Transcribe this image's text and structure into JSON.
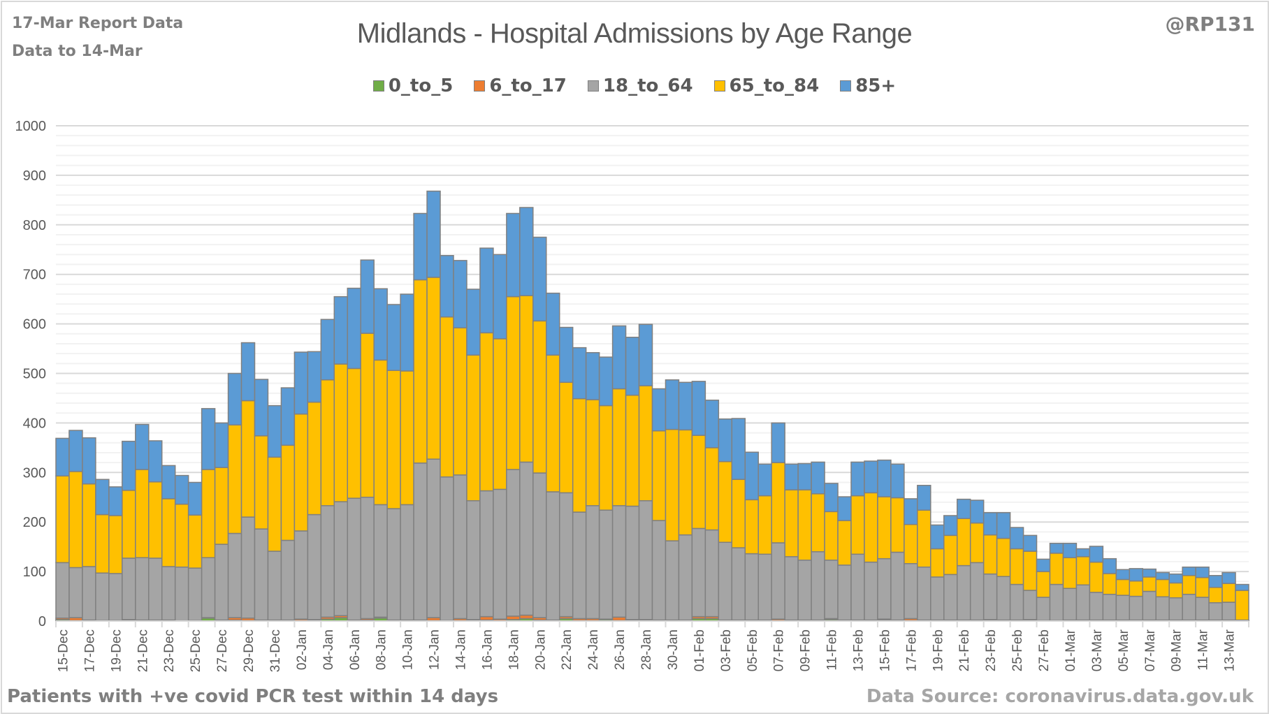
{
  "header": {
    "report_line1": "17-Mar Report Data",
    "report_line2": "Data to 14-Mar",
    "handle": "@RP131"
  },
  "footer": {
    "note": "Patients with  +ve covid PCR test within 14 days",
    "source": "Data Source: coronavirus.data.gov.uk"
  },
  "chart_data": {
    "type": "bar",
    "stacked": true,
    "title": "Midlands - Hospital Admissions by Age Range",
    "xlabel": "",
    "ylabel": "",
    "ylim": [
      0,
      1000
    ],
    "yticks": [
      0,
      100,
      200,
      300,
      400,
      500,
      600,
      700,
      800,
      900,
      1000
    ],
    "grid": true,
    "minor_grid_step": 20,
    "legend_position": "top",
    "categories": [
      "15-Dec",
      "16-Dec",
      "17-Dec",
      "18-Dec",
      "19-Dec",
      "20-Dec",
      "21-Dec",
      "22-Dec",
      "23-Dec",
      "24-Dec",
      "25-Dec",
      "26-Dec",
      "27-Dec",
      "28-Dec",
      "29-Dec",
      "30-Dec",
      "31-Dec",
      "01-Jan",
      "02-Jan",
      "03-Jan",
      "04-Jan",
      "05-Jan",
      "06-Jan",
      "07-Jan",
      "08-Jan",
      "09-Jan",
      "10-Jan",
      "11-Jan",
      "12-Jan",
      "13-Jan",
      "14-Jan",
      "15-Jan",
      "16-Jan",
      "17-Jan",
      "18-Jan",
      "19-Jan",
      "20-Jan",
      "21-Jan",
      "22-Jan",
      "23-Jan",
      "24-Jan",
      "25-Jan",
      "26-Jan",
      "27-Jan",
      "28-Jan",
      "29-Jan",
      "30-Jan",
      "31-Jan",
      "01-Feb",
      "02-Feb",
      "03-Feb",
      "04-Feb",
      "05-Feb",
      "06-Feb",
      "07-Feb",
      "08-Feb",
      "09-Feb",
      "10-Feb",
      "11-Feb",
      "12-Feb",
      "13-Feb",
      "14-Feb",
      "15-Feb",
      "16-Feb",
      "17-Feb",
      "18-Feb",
      "19-Feb",
      "20-Feb",
      "21-Feb",
      "22-Feb",
      "23-Feb",
      "24-Feb",
      "25-Feb",
      "26-Feb",
      "27-Feb",
      "28-Feb",
      "01-Mar",
      "02-Mar",
      "03-Mar",
      "04-Mar",
      "05-Mar",
      "06-Mar",
      "07-Mar",
      "08-Mar",
      "09-Mar",
      "10-Mar",
      "11-Mar",
      "12-Mar",
      "13-Mar",
      "14-Mar"
    ],
    "tick_labels_every": 2,
    "series": [
      {
        "name": "0_to_5",
        "color": "#70ad47",
        "values": [
          3,
          1,
          1,
          0,
          0,
          2,
          1,
          1,
          1,
          0,
          0,
          6,
          1,
          2,
          1,
          1,
          1,
          1,
          1,
          1,
          4,
          7,
          1,
          2,
          6,
          1,
          1,
          1,
          1,
          0,
          1,
          1,
          2,
          1,
          3,
          5,
          2,
          1,
          5,
          1,
          1,
          3,
          1,
          1,
          1,
          1,
          1,
          1,
          5,
          5,
          1,
          1,
          1,
          1,
          1,
          1,
          1,
          1,
          3,
          1,
          1,
          1,
          2,
          1,
          1,
          1,
          1,
          1,
          1,
          1,
          1,
          1,
          1,
          2,
          1,
          0,
          1,
          1,
          1,
          1,
          1,
          1,
          1,
          1,
          1,
          1,
          1,
          1,
          1,
          1
        ]
      },
      {
        "name": "6_to_17",
        "color": "#ed7d31",
        "values": [
          3,
          6,
          1,
          1,
          1,
          1,
          1,
          1,
          1,
          0,
          1,
          1,
          1,
          5,
          5,
          1,
          1,
          1,
          3,
          2,
          4,
          4,
          1,
          3,
          2,
          1,
          1,
          1,
          6,
          1,
          4,
          2,
          7,
          3,
          7,
          7,
          5,
          1,
          4,
          4,
          4,
          1,
          7,
          2,
          2,
          1,
          1,
          1,
          4,
          4,
          1,
          1,
          1,
          1,
          3,
          1,
          1,
          1,
          2,
          1,
          1,
          1,
          2,
          1,
          4,
          1,
          1,
          1,
          1,
          1,
          2,
          1,
          1,
          1,
          0,
          1,
          1,
          1,
          1,
          1,
          1,
          1,
          1,
          1,
          1,
          1,
          1,
          1,
          1,
          1
        ]
      },
      {
        "name": "18_to_64",
        "color": "#a5a5a5",
        "values": [
          112,
          101,
          108,
          96,
          95,
          124,
          126,
          125,
          108,
          109,
          106,
          121,
          153,
          170,
          204,
          184,
          139,
          161,
          178,
          212,
          225,
          230,
          246,
          245,
          227,
          225,
          233,
          317,
          320,
          290,
          290,
          240,
          254,
          262,
          296,
          309,
          292,
          259,
          250,
          215,
          228,
          220,
          225,
          229,
          240,
          201,
          160,
          172,
          178,
          175,
          157,
          146,
          134,
          133,
          154,
          128,
          121,
          138,
          118,
          111,
          133,
          117,
          122,
          137,
          111,
          107,
          87,
          92,
          110,
          116,
          92,
          88,
          72,
          59,
          47,
          73,
          64,
          71,
          56,
          52,
          50,
          48,
          58,
          47,
          45,
          52,
          46,
          35,
          36,
          0
        ]
      },
      {
        "name": "65_to_84",
        "color": "#ffc000",
        "values": [
          175,
          194,
          167,
          118,
          117,
          137,
          178,
          154,
          137,
          127,
          107,
          178,
          155,
          219,
          235,
          188,
          190,
          192,
          236,
          227,
          254,
          278,
          262,
          331,
          292,
          279,
          270,
          370,
          367,
          323,
          297,
          294,
          319,
          304,
          349,
          336,
          307,
          276,
          223,
          229,
          214,
          211,
          236,
          224,
          232,
          181,
          225,
          212,
          188,
          166,
          163,
          138,
          109,
          118,
          162,
          135,
          142,
          117,
          98,
          90,
          118,
          140,
          125,
          110,
          79,
          115,
          57,
          79,
          95,
          80,
          79,
          77,
          72,
          79,
          52,
          63,
          62,
          57,
          61,
          42,
          32,
          31,
          29,
          35,
          30,
          38,
          40,
          31,
          38,
          60
        ]
      },
      {
        "name": "85+",
        "color": "#5b9bd5",
        "values": [
          76,
          83,
          93,
          71,
          58,
          99,
          91,
          83,
          67,
          58,
          66,
          123,
          90,
          104,
          117,
          114,
          104,
          116,
          125,
          102,
          122,
          136,
          162,
          148,
          144,
          133,
          155,
          134,
          174,
          124,
          136,
          133,
          171,
          170,
          168,
          178,
          169,
          125,
          111,
          103,
          95,
          98,
          127,
          117,
          124,
          85,
          100,
          96,
          109,
          96,
          86,
          123,
          96,
          64,
          80,
          52,
          53,
          64,
          57,
          48,
          68,
          64,
          74,
          68,
          52,
          50,
          48,
          40,
          39,
          46,
          45,
          52,
          43,
          32,
          25,
          20,
          29,
          16,
          32,
          30,
          20,
          25,
          16,
          14,
          18,
          17,
          21,
          24,
          22,
          12
        ]
      }
    ]
  }
}
